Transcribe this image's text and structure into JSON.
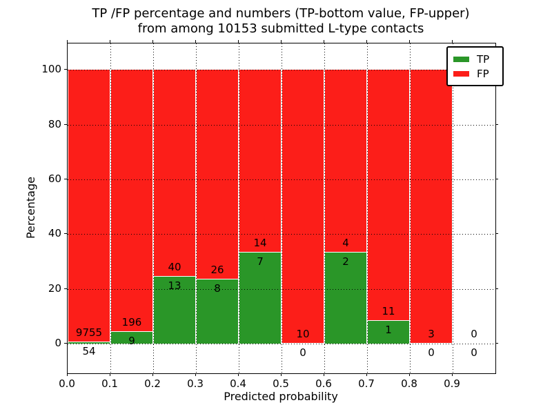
{
  "app": {
    "background": "#ffffff",
    "text_color": "#000000"
  },
  "chart_data": {
    "type": "bar",
    "stacked": true,
    "title_line1": "TP /FP percentage and numbers (TP-bottom value, FP-upper)",
    "title_line2": "from among 10153 submitted L-type contacts",
    "xlabel": "Predicted probability",
    "ylabel": "Percentage",
    "xlim": [
      0.0,
      1.0
    ],
    "ylim": [
      -10.8,
      109.6
    ],
    "x_ticks": [
      0.0,
      0.1,
      0.2,
      0.3,
      0.4,
      0.5,
      0.6,
      0.7,
      0.8,
      0.9
    ],
    "x_tick_labels": [
      "0.0",
      "0.1",
      "0.2",
      "0.3",
      "0.4",
      "0.5",
      "0.6",
      "0.7",
      "0.8",
      "0.9"
    ],
    "y_ticks": [
      0,
      20,
      40,
      60,
      80,
      100
    ],
    "y_tick_labels": [
      "0",
      "20",
      "40",
      "60",
      "80",
      "100"
    ],
    "grid": true,
    "colors": {
      "tp": "#2A9628",
      "fp": "#FC1E19"
    },
    "legend": {
      "position": "upper-right",
      "items": [
        {
          "label": "TP",
          "color": "#2A9628"
        },
        {
          "label": "FP",
          "color": "#FC1E19"
        }
      ]
    },
    "bins": [
      {
        "x0": 0.0,
        "x1": 0.1,
        "tp": 54,
        "fp": 9755,
        "tp_pct": 0.55,
        "fp_pct": 99.45
      },
      {
        "x0": 0.1,
        "x1": 0.2,
        "tp": 9,
        "fp": 196,
        "tp_pct": 4.39,
        "fp_pct": 95.61
      },
      {
        "x0": 0.2,
        "x1": 0.3,
        "tp": 13,
        "fp": 40,
        "tp_pct": 24.53,
        "fp_pct": 75.47
      },
      {
        "x0": 0.3,
        "x1": 0.4,
        "tp": 8,
        "fp": 26,
        "tp_pct": 23.53,
        "fp_pct": 76.47
      },
      {
        "x0": 0.4,
        "x1": 0.5,
        "tp": 7,
        "fp": 14,
        "tp_pct": 33.33,
        "fp_pct": 66.67
      },
      {
        "x0": 0.5,
        "x1": 0.6,
        "tp": 0,
        "fp": 10,
        "tp_pct": 0.0,
        "fp_pct": 100.0
      },
      {
        "x0": 0.6,
        "x1": 0.7,
        "tp": 2,
        "fp": 4,
        "tp_pct": 33.33,
        "fp_pct": 66.67
      },
      {
        "x0": 0.7,
        "x1": 0.8,
        "tp": 1,
        "fp": 11,
        "tp_pct": 8.33,
        "fp_pct": 91.67
      },
      {
        "x0": 0.8,
        "x1": 0.9,
        "tp": 0,
        "fp": 3,
        "tp_pct": 0.0,
        "fp_pct": 100.0
      },
      {
        "x0": 0.9,
        "x1": 1.0,
        "tp": 0,
        "fp": 0,
        "tp_pct": null,
        "fp_pct": null
      }
    ]
  }
}
